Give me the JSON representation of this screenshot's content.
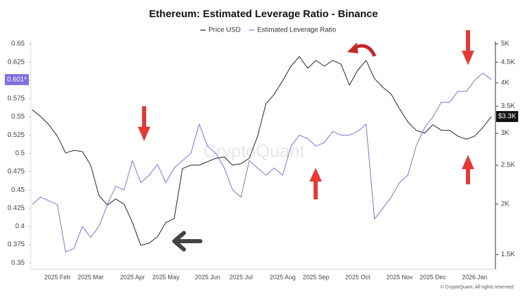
{
  "chart_data": {
    "type": "line",
    "title": "Ethereum: Estimated Leverage Ratio - Binance",
    "watermark": "CryptoQuant",
    "source": "© CryptoQuant. All rights reserved",
    "categories": [
      null,
      null,
      null,
      "2025 Feb",
      null,
      null,
      null,
      "2025 Mar",
      null,
      null,
      null,
      null,
      "2025 Apr",
      null,
      null,
      null,
      "2025 May",
      null,
      null,
      null,
      null,
      "2025 Jun",
      null,
      null,
      null,
      "2025 Jul",
      null,
      null,
      null,
      null,
      "2025 Aug",
      null,
      null,
      null,
      "2025 Sep",
      null,
      null,
      null,
      null,
      "2025 Oct",
      null,
      null,
      null,
      null,
      "2025 Nov",
      null,
      null,
      null,
      "2025 Dec",
      null,
      null,
      null,
      null,
      "2026 Jan",
      null,
      null
    ],
    "series": [
      {
        "name": "Price USD",
        "color": "#222222",
        "axis": "y2",
        "last_label": "$3.3K",
        "values": [
          3430,
          3300,
          3150,
          2950,
          2680,
          2720,
          2700,
          2500,
          2100,
          1990,
          2060,
          2000,
          1800,
          1580,
          1600,
          1660,
          1800,
          1840,
          2450,
          2500,
          2500,
          2550,
          2600,
          2620,
          2500,
          2520,
          2600,
          2950,
          3550,
          3750,
          4050,
          4400,
          4650,
          4350,
          4550,
          4400,
          4550,
          4450,
          3950,
          4300,
          4550,
          4100,
          3900,
          3750,
          3450,
          3200,
          3050,
          3000,
          3150,
          3050,
          3050,
          2950,
          2900,
          2950,
          3100,
          3300
        ]
      },
      {
        "name": "Estimated Leverage Ratio",
        "color": "#7b6fe0",
        "last_label": "0.601*",
        "values": [
          0.43,
          0.44,
          0.435,
          0.43,
          0.365,
          0.37,
          0.4,
          0.385,
          0.4,
          0.43,
          0.455,
          0.45,
          0.49,
          0.46,
          0.47,
          0.485,
          0.46,
          0.48,
          0.49,
          0.5,
          0.54,
          0.51,
          0.5,
          0.48,
          0.45,
          0.44,
          0.49,
          0.48,
          0.47,
          0.48,
          0.47,
          0.51,
          0.525,
          0.52,
          0.51,
          0.515,
          0.53,
          0.525,
          0.525,
          0.53,
          0.54,
          0.41,
          0.425,
          0.44,
          0.46,
          0.47,
          0.51,
          0.535,
          0.55,
          0.57,
          0.57,
          0.585,
          0.585,
          0.6,
          0.61,
          0.601
        ]
      }
    ],
    "ylim": [
      0.345,
      0.65
    ],
    "yticks": [
      0.35,
      0.375,
      0.4,
      0.425,
      0.45,
      0.475,
      0.5,
      0.525,
      0.55,
      0.575,
      0.6,
      0.625,
      0.65
    ],
    "y2lim": [
      1400,
      5000
    ],
    "y2log": true,
    "y2ticks": [
      {
        "value": 1500,
        "label": "1.5K"
      },
      {
        "value": 2000,
        "label": "2K"
      },
      {
        "value": 2500,
        "label": "2.5K"
      },
      {
        "value": 3000,
        "label": "3K"
      },
      {
        "value": 3500,
        "label": "3.5K"
      },
      {
        "value": 4000,
        "label": "4K"
      },
      {
        "value": 4500,
        "label": "4.5K"
      },
      {
        "value": 5000,
        "label": "5K"
      }
    ],
    "grid": false
  }
}
